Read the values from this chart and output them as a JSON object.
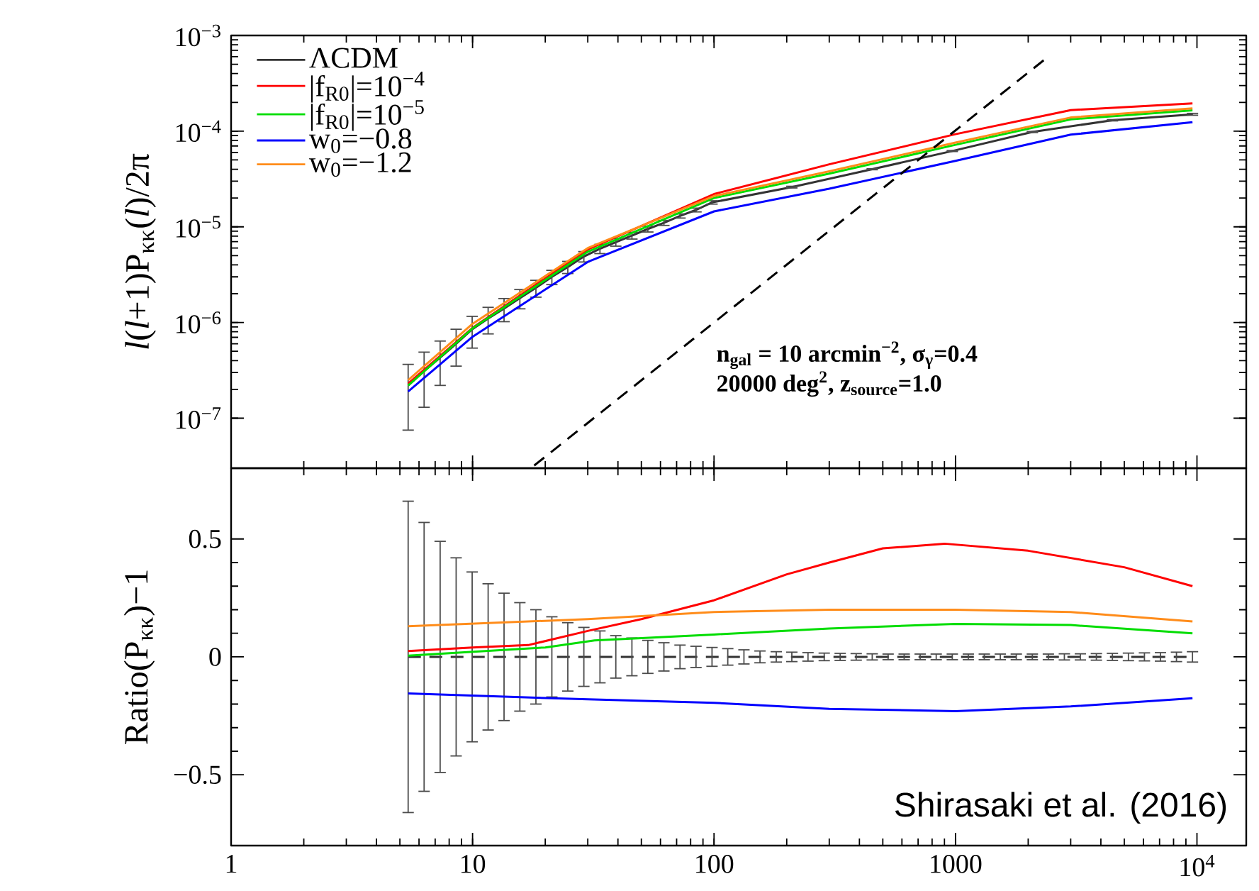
{
  "chart_data": [
    {
      "type": "line",
      "log": "xy",
      "legend": "top left",
      "tick_labels": "y",
      "ylabel": "*l*(*l*+1)P$_{κκ}$(*l*)/2π",
      "xlim": [
        1,
        16000
      ],
      "ylim": [
        3e-08,
        0.001
      ],
      "xticks": [
        {
          "value": 1,
          "label": null
        },
        {
          "value": 10,
          "label": null
        },
        {
          "value": 100,
          "label": null
        },
        {
          "value": 1000,
          "label": null
        },
        {
          "value": 10000,
          "label": null
        }
      ],
      "yticks": [
        {
          "value": 1e-07,
          "label": "10$^{−7}$"
        },
        {
          "value": 1e-06,
          "label": "10$^{−6}$"
        },
        {
          "value": 1e-05,
          "label": "10$^{−5}$"
        },
        {
          "value": 0.0001,
          "label": "10$^{−4}$"
        },
        {
          "value": 0.001,
          "label": "10$^{−3}$"
        }
      ],
      "annotations": [
        "n$_{gal}$ = 10 arcmin$^{−2}$, σ$_{γ}$=0.4",
        "20000 deg$^{2}$, z$_{source}$=1.0"
      ],
      "series": [
        {
          "name": "ΛCDM",
          "color": "#333333",
          "x": [
            5.41,
            6.3,
            7.34,
            8.55,
            9.96,
            11.6,
            13.5,
            15.7,
            18.3,
            21.3,
            24.8,
            28.9,
            33.7,
            39.2,
            45.7,
            53.2,
            62,
            72.3,
            84.2,
            98.1,
            210,
            452,
            970,
            2081,
            4465,
            9582
          ],
          "values": [
            2.2e-07,
            3.1e-07,
            4.3e-07,
            6e-07,
            8.5e-07,
            1.1e-06,
            1.4e-06,
            1.8e-06,
            2.3e-06,
            3e-06,
            3.8e-06,
            4.9e-06,
            5.9e-06,
            6.9e-06,
            8.1e-06,
            9.5e-06,
            1.1e-05,
            1.3e-05,
            1.5e-05,
            1.8e-05,
            2.6e-05,
            4e-05,
            6.2e-05,
            9.8e-05,
            0.00013,
            0.00015
          ],
          "errors": [
            1.45e-07,
            1.8e-07,
            2.1e-07,
            2.5e-07,
            3.1e-07,
            3.4e-07,
            3.8e-07,
            4.1e-07,
            4.6e-07,
            5.1e-07,
            5.5e-07,
            6.1e-07,
            6.5e-07,
            6.2e-07,
            6.5e-07,
            6.7e-07,
            6.6e-07,
            6.5e-07,
            6.8e-07,
            7.2e-07,
            5.2e-07,
            4.8e-07,
            7.4e-07,
            1.2e-06,
            2e-06,
            3.3e-06
          ]
        },
        {
          "name": "|f$_{R0}$|=10$^{−4}$",
          "color": "#ff0000",
          "x": [
            5.41,
            10,
            30,
            100,
            300,
            1000,
            3000,
            9582
          ],
          "values": [
            2.3e-07,
            8.8e-07,
            5.8e-06,
            2.2e-05,
            4.5e-05,
            9.3e-05,
            0.000166,
            0.000195
          ]
        },
        {
          "name": "|f$_{R0}$|=10$^{−5}$",
          "color": "#00dd00",
          "x": [
            5.41,
            10,
            30,
            100,
            300,
            1000,
            3000,
            9582
          ],
          "values": [
            2.2e-07,
            8.7e-07,
            5.5e-06,
            2e-05,
            3.6e-05,
            7.2e-05,
            0.000133,
            0.000165
          ]
        },
        {
          "name": "w$_{0}$=−0.8",
          "color": "#0000ff",
          "x": [
            5.41,
            10,
            30,
            100,
            300,
            1000,
            3000,
            9582
          ],
          "values": [
            1.9e-07,
            7.1e-07,
            4.3e-06,
            1.45e-05,
            2.5e-05,
            4.9e-05,
            9.2e-05,
            0.000124
          ]
        },
        {
          "name": "w$_{0}$=−1.2",
          "color": "#ff8c1a",
          "x": [
            5.41,
            10,
            30,
            100,
            300,
            1000,
            3000,
            9582
          ],
          "values": [
            2.5e-07,
            9.7e-07,
            6e-06,
            2.1e-05,
            3.8e-05,
            7.6e-05,
            0.000139,
            0.000173
          ]
        },
        {
          "color": "#000000",
          "line_style": "dashed",
          "x": [
            18,
            2420
          ],
          "values": [
            3.2e-08,
            0.0006
          ]
        }
      ]
    },
    {
      "type": "line",
      "log": "x",
      "ylabel": "Ratio(P$_{κκ}$)−1",
      "xlim": [
        1,
        16000
      ],
      "ylim": [
        -0.8,
        0.8
      ],
      "xticks": [
        {
          "value": 1,
          "label": "1"
        },
        {
          "value": 10,
          "label": "10"
        },
        {
          "value": 100,
          "label": "100"
        },
        {
          "value": 1000,
          "label": "1000"
        },
        {
          "value": 10000,
          "label": "10$^{4}$"
        }
      ],
      "yticks": [
        {
          "value": -0.5,
          "label": "−0.5"
        },
        0,
        0.5
      ],
      "annotations": [
        "Shirasaki et al. (2016)"
      ],
      "series": [
        {
          "color": "#333333",
          "line_style": "dashed",
          "x": [
            5.41,
            6.3,
            7.34,
            8.55,
            9.96,
            11.6,
            13.5,
            15.7,
            18.3,
            21.3,
            24.8,
            28.9,
            33.7,
            39.2,
            45.7,
            53.2,
            62,
            72.3,
            84.2,
            98.1,
            114,
            133,
            155,
            181,
            210,
            245,
            286,
            333,
            388,
            452,
            526,
            613,
            714,
            832,
            970,
            1130,
            1316,
            1533,
            1786,
            2081,
            2424,
            2824,
            3290,
            3833,
            4465,
            5202,
            6060,
            7060,
            8225,
            9582
          ],
          "values": [
            0,
            0,
            0,
            0,
            0,
            0,
            0,
            0,
            0,
            0,
            0,
            0,
            0,
            0,
            0,
            0,
            0,
            0,
            0,
            0,
            0,
            0,
            0,
            0,
            0,
            0,
            0,
            0,
            0,
            0,
            0,
            0,
            0,
            0,
            0,
            0,
            0,
            0,
            0,
            0,
            0,
            0,
            0,
            0,
            0,
            0,
            0,
            0,
            0,
            0
          ],
          "errors": [
            0.66,
            0.57,
            0.49,
            0.42,
            0.36,
            0.31,
            0.27,
            0.23,
            0.2,
            0.17,
            0.145,
            0.125,
            0.11,
            0.09,
            0.08,
            0.07,
            0.06,
            0.05,
            0.045,
            0.04,
            0.035,
            0.03,
            0.025,
            0.022,
            0.02,
            0.018,
            0.016,
            0.015,
            0.014,
            0.013,
            0.012,
            0.012,
            0.012,
            0.012,
            0.012,
            0.012,
            0.012,
            0.012,
            0.012,
            0.012,
            0.012,
            0.013,
            0.013,
            0.014,
            0.015,
            0.016,
            0.017,
            0.018,
            0.02,
            0.022
          ]
        },
        {
          "color": "#ff0000",
          "x": [
            5.41,
            10,
            17,
            30,
            50,
            100,
            200,
            300,
            500,
            900,
            2000,
            5000,
            9582
          ],
          "values": [
            0.025,
            0.04,
            0.05,
            0.11,
            0.16,
            0.24,
            0.35,
            0.4,
            0.46,
            0.48,
            0.45,
            0.38,
            0.3
          ]
        },
        {
          "color": "#00dd00",
          "x": [
            5.41,
            20,
            32,
            100,
            300,
            1000,
            3000,
            9582
          ],
          "values": [
            0.005,
            0.04,
            0.07,
            0.095,
            0.12,
            0.14,
            0.135,
            0.1
          ]
        },
        {
          "color": "#0000ff",
          "x": [
            5.41,
            30,
            100,
            300,
            1000,
            3000,
            9582
          ],
          "values": [
            -0.155,
            -0.18,
            -0.195,
            -0.22,
            -0.23,
            -0.21,
            -0.175
          ]
        },
        {
          "color": "#ff8c1a",
          "x": [
            5.41,
            30,
            100,
            300,
            1000,
            3000,
            9582
          ],
          "values": [
            0.13,
            0.16,
            0.19,
            0.2,
            0.2,
            0.19,
            0.15
          ]
        }
      ]
    }
  ]
}
